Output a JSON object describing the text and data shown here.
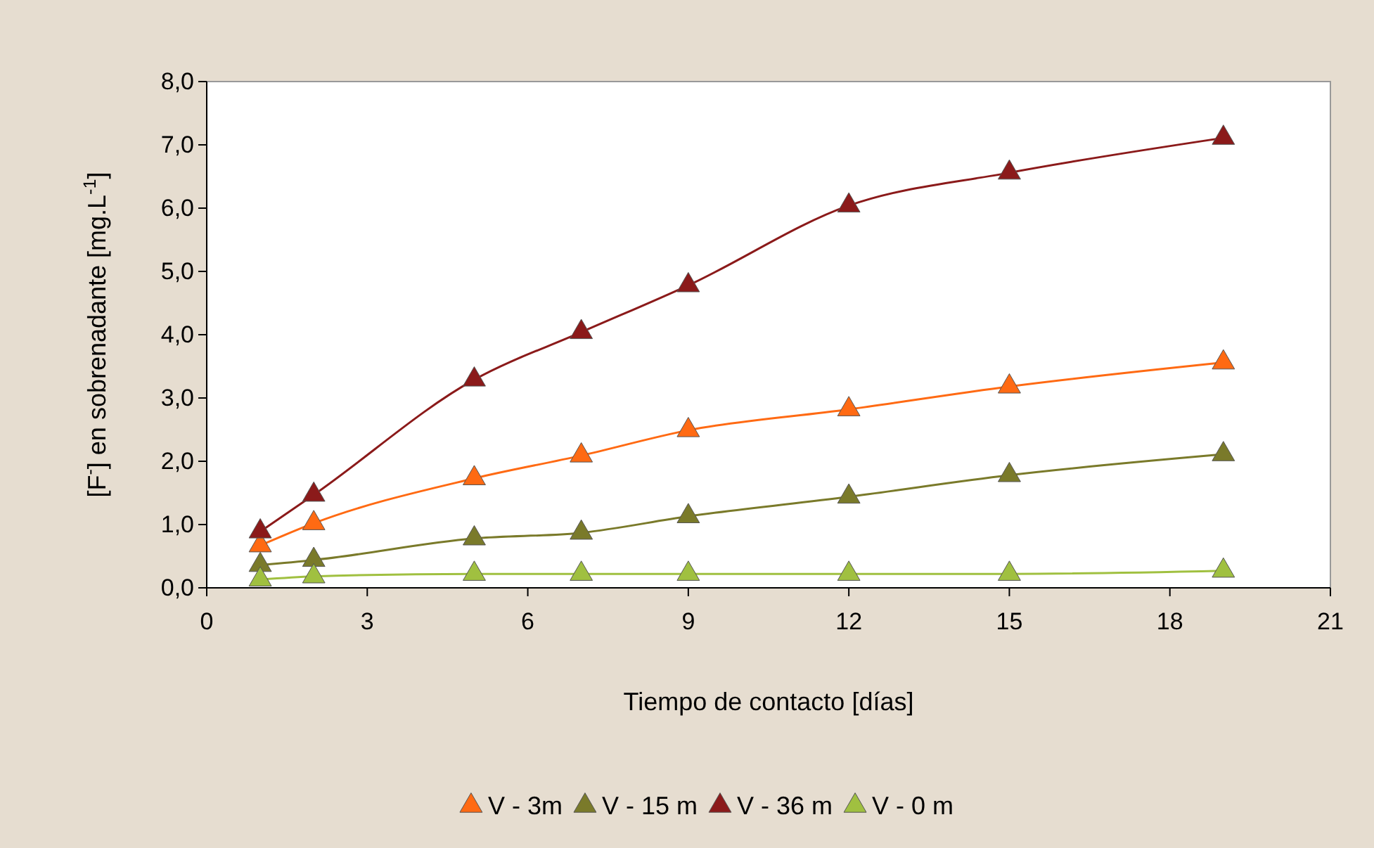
{
  "chart_data": {
    "type": "line",
    "xlabel": "Tiempo de contacto [días]",
    "ylabel": "[F$^{-}$] en sobrenadante [mg.L$^{-1}$]",
    "x": [
      1,
      2,
      5,
      7,
      9,
      12,
      15,
      19
    ],
    "xlim": [
      0,
      21
    ],
    "xticks": [
      0,
      3,
      6,
      9,
      12,
      15,
      18,
      21
    ],
    "ylim": [
      0,
      8
    ],
    "yticks": [
      {
        "value": 0,
        "label": "0,0"
      },
      {
        "value": 1,
        "label": "1,0"
      },
      {
        "value": 2,
        "label": "2,0"
      },
      {
        "value": 3,
        "label": "3,0"
      },
      {
        "value": 4,
        "label": "4,0"
      },
      {
        "value": 5,
        "label": "5,0"
      },
      {
        "value": 6,
        "label": "6,0"
      },
      {
        "value": 7,
        "label": "7,0"
      },
      {
        "value": 8,
        "label": "8,0"
      }
    ],
    "grid": false,
    "legend": "bottom",
    "marker": "triangle",
    "line_style": "solid",
    "series": [
      {
        "name": "V - 3m",
        "color": "#ff6a13",
        "values": [
          0.67,
          1.02,
          1.73,
          2.09,
          2.49,
          2.82,
          3.18,
          3.56
        ]
      },
      {
        "name": "V - 15 m",
        "color": "#7a7a2a",
        "values": [
          0.36,
          0.44,
          0.78,
          0.87,
          1.13,
          1.44,
          1.78,
          2.11
        ]
      },
      {
        "name": "V - 36 m",
        "color": "#8b1a1a",
        "values": [
          0.89,
          1.47,
          3.29,
          4.04,
          4.78,
          6.04,
          6.56,
          7.11
        ]
      },
      {
        "name": "V - 0 m",
        "color": "#a0c040",
        "values": [
          0.13,
          0.18,
          0.22,
          0.22,
          0.22,
          0.22,
          0.22,
          0.27
        ]
      }
    ]
  }
}
